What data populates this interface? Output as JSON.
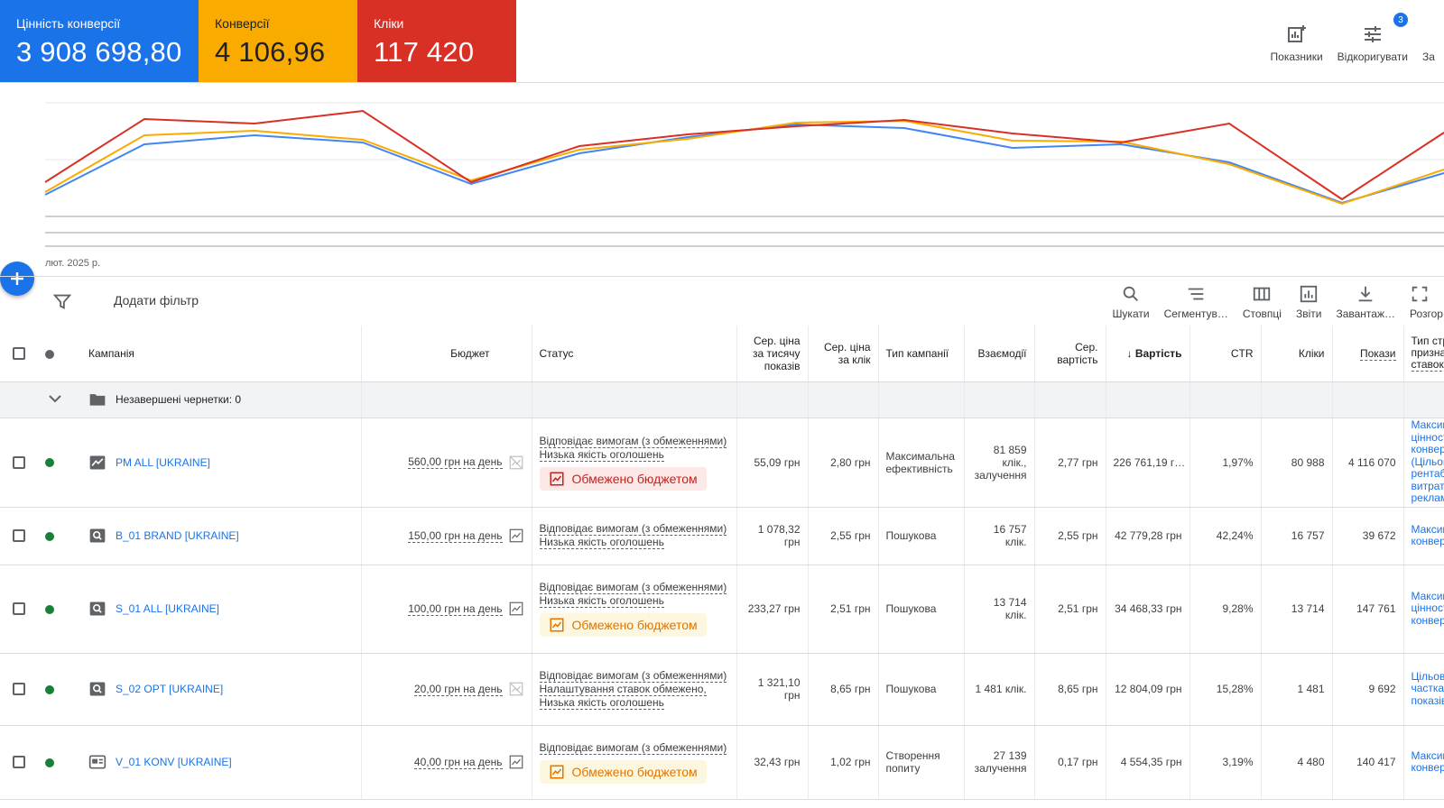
{
  "metrics": [
    {
      "label": "Цінність конверсії",
      "value": "3 908 698,80",
      "color": "#1a73e8"
    },
    {
      "label": "Конверсії",
      "value": "4 106,96",
      "color": "#f9ab00"
    },
    {
      "label": "Кліки",
      "value": "117 420",
      "color": "#d93025"
    }
  ],
  "top_tools": {
    "metrics_label": "Показники",
    "adjust_label": "Відкоригувати",
    "adjust_badge": "3",
    "third_label": "За"
  },
  "chart": {
    "date_label": "лют. 2025 р."
  },
  "filter": {
    "add_filter_label": "Додати фільтр"
  },
  "table_tools": {
    "search": "Шукати",
    "segment": "Сегментув…",
    "columns": "Стовпці",
    "reports": "Звіти",
    "download": "Завантаж…",
    "expand": "Розгор"
  },
  "columns": {
    "campaign": "Кампанія",
    "budget": "Бюджет",
    "status": "Статус",
    "cpm": "Сер. ціна за тисячу показів",
    "cpc": "Сер. ціна за клік",
    "type": "Тип кампанії",
    "interactions": "Взаємодії",
    "avg_cost": "Сер. вартість",
    "cost": "Вартість",
    "ctr": "CTR",
    "clicks": "Кліки",
    "impressions": "Покази",
    "bid": "Тип стр призна ставок"
  },
  "draft_row": {
    "label": "Незавершені чернетки: 0"
  },
  "status_texts": {
    "eligible": "Відповідає вимогам (з обмеженнями)",
    "low_quality": "Низька якість оголошень",
    "bid_limited": "Налаштування ставок обмежено,",
    "limited_budget": "Обмежено бюджетом"
  },
  "rows": [
    {
      "name": "PM ALL [UKRAINE]",
      "icon": "performance-icon",
      "budget": "560,00 грн на день",
      "budget_icon": "chart-off-icon",
      "cpm": "55,09 грн",
      "cpc": "2,80 грн",
      "type": "Максимальна ефективність",
      "interactions": "81 859 клік., залучення",
      "avg_cost": "2,77 грн",
      "cost": "226 761,19 г…",
      "ctr": "1,97%",
      "clicks": "80 988",
      "impressions": "4 116 070",
      "bid": [
        "Максим",
        "цінності",
        "конверс",
        "(Цільов",
        "рентабе",
        "витрат",
        "реклам"
      ]
    },
    {
      "name": "B_01 BRAND [UKRAINE]",
      "icon": "search-campaign-icon",
      "budget": "150,00 грн на день",
      "budget_icon": "chart-icon",
      "cpm": "1 078,32 грн",
      "cpc": "2,55 грн",
      "type": "Пошукова",
      "interactions": "16 757 клік.",
      "avg_cost": "2,55 грн",
      "cost": "42 779,28 грн",
      "ctr": "42,24%",
      "clicks": "16 757",
      "impressions": "39 672",
      "bid": [
        "Максим",
        "конверс"
      ]
    },
    {
      "name": "S_01 ALL [UKRAINE]",
      "icon": "search-campaign-icon",
      "budget": "100,00 грн на день",
      "budget_icon": "chart-icon",
      "cpm": "233,27 грн",
      "cpc": "2,51 грн",
      "type": "Пошукова",
      "interactions": "13 714 клік.",
      "avg_cost": "2,51 грн",
      "cost": "34 468,33 грн",
      "ctr": "9,28%",
      "clicks": "13 714",
      "impressions": "147 761",
      "bid": [
        "Максим",
        "цінності",
        "конверс"
      ]
    },
    {
      "name": "S_02 OPT [UKRAINE]",
      "icon": "search-campaign-icon",
      "budget": "20,00 грн на день",
      "budget_icon": "chart-off-icon",
      "cpm": "1 321,10 грн",
      "cpc": "8,65 грн",
      "type": "Пошукова",
      "interactions": "1 481 клік.",
      "avg_cost": "8,65 грн",
      "cost": "12 804,09 грн",
      "ctr": "15,28%",
      "clicks": "1 481",
      "impressions": "9 692",
      "bid": [
        "Цільова",
        "частка",
        "показів"
      ]
    },
    {
      "name": "V_01 KONV [UKRAINE]",
      "icon": "demand-gen-icon",
      "budget": "40,00 грн на день",
      "budget_icon": "chart-icon",
      "cpm": "32,43 грн",
      "cpc": "1,02 грн",
      "type": "Створення попиту",
      "interactions": "27 139 залучення",
      "avg_cost": "0,17 грн",
      "cost": "4 554,35 грн",
      "ctr": "3,19%",
      "clicks": "4 480",
      "impressions": "140 417",
      "bid": [
        "Максим",
        "конверс"
      ]
    }
  ]
}
